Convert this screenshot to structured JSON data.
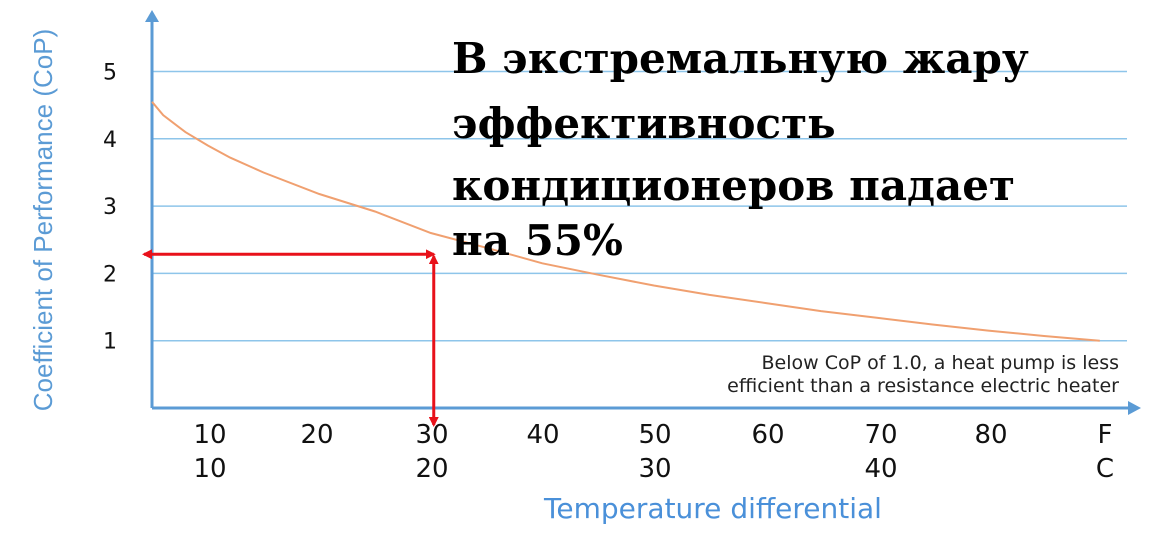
{
  "chart_data": {
    "type": "line",
    "ylabel": "Coefficient of Performance (CoP)",
    "xlabel": "Temperature differential",
    "ylim": [
      0,
      5.5
    ],
    "y_ticks": [
      "1",
      "2",
      "3",
      "4",
      "5"
    ],
    "x_ticks_f": [
      "10",
      "20",
      "30",
      "40",
      "50",
      "60",
      "70",
      "80",
      "F"
    ],
    "x_ticks_c": [
      "10",
      "20",
      "30",
      "40",
      "C"
    ],
    "grid": true,
    "series": [
      {
        "x": [
          5,
          6,
          8,
          10,
          12,
          15,
          20,
          25,
          30,
          35,
          40,
          45,
          50,
          55,
          60,
          65,
          70,
          75,
          80,
          85,
          90
        ],
        "y": [
          4.55,
          4.35,
          4.1,
          3.9,
          3.72,
          3.5,
          3.18,
          2.92,
          2.6,
          2.38,
          2.15,
          1.98,
          1.82,
          1.68,
          1.56,
          1.44,
          1.34,
          1.24,
          1.15,
          1.07,
          1.0
        ]
      }
    ],
    "annotations": {
      "headline_lines": [
        "В экстремальную жару",
        "эффективность",
        "кондиционеров падает",
        "на 55%"
      ],
      "note_lines": [
        "Below CoP of 1.0, a heat pump is less",
        "efficient than a resistance electric heater"
      ],
      "marker": {
        "x": 30,
        "y": 2.3
      }
    },
    "colors": {
      "axis": "#5b9bd5",
      "grid": "#8ec5ea",
      "curve": "#f0a070",
      "marker": "#e8111a"
    }
  }
}
